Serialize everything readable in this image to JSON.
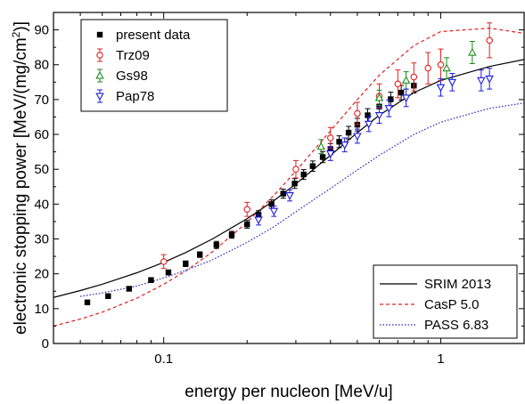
{
  "chart_data": {
    "type": "scatter",
    "xlabel": "energy per nucleon [MeV/u]",
    "ylabel": "electronic stopping power [MeV/(mg/cm²)]",
    "ylabel_parts": {
      "main": "electronic stopping power [MeV/(mg/cm",
      "sup": "2",
      "end": ")]"
    },
    "xscale": "log",
    "xlim": [
      0.04,
      2.0
    ],
    "ylim": [
      0,
      95
    ],
    "x_ticks": [
      0.1,
      1
    ],
    "x_tick_labels": [
      "0.1",
      "1"
    ],
    "y_ticks": [
      0,
      10,
      20,
      30,
      40,
      50,
      60,
      70,
      80,
      90
    ],
    "y_tick_labels": [
      "0",
      "10",
      "20",
      "30",
      "40",
      "50",
      "60",
      "70",
      "80",
      "90"
    ],
    "grid": false,
    "legend_points_placement": "top-left",
    "legend_lines_placement": "bottom-right",
    "series": [
      {
        "name": "present data",
        "kind": "points",
        "marker": "square",
        "color": "#000000",
        "points": [
          [
            0.053,
            11.8,
            0.6
          ],
          [
            0.063,
            13.6,
            0.6
          ],
          [
            0.075,
            15.7,
            0.6
          ],
          [
            0.09,
            18.2,
            0.7
          ],
          [
            0.104,
            20.4,
            0.7
          ],
          [
            0.12,
            22.9,
            0.8
          ],
          [
            0.135,
            25.5,
            0.8
          ],
          [
            0.155,
            28.3,
            1.0
          ],
          [
            0.176,
            31.2,
            1.0
          ],
          [
            0.2,
            34.2,
            1.1
          ],
          [
            0.22,
            37.0,
            1.1
          ],
          [
            0.245,
            40.0,
            1.2
          ],
          [
            0.27,
            43.0,
            1.3
          ],
          [
            0.297,
            45.9,
            1.4
          ],
          [
            0.32,
            48.5,
            1.4
          ],
          [
            0.345,
            50.9,
            1.5
          ],
          [
            0.375,
            53.5,
            1.6
          ],
          [
            0.4,
            55.8,
            1.6
          ],
          [
            0.43,
            57.9,
            1.7
          ],
          [
            0.465,
            60.5,
            1.8
          ],
          [
            0.5,
            62.8,
            1.8
          ],
          [
            0.545,
            65.5,
            1.9
          ],
          [
            0.6,
            68.0,
            2.0
          ],
          [
            0.66,
            70.1,
            2.0
          ],
          [
            0.72,
            72.0,
            2.1
          ],
          [
            0.8,
            74.0,
            2.1
          ]
        ]
      },
      {
        "name": "Trz09",
        "kind": "points",
        "marker": "circle",
        "color": "#e02020",
        "points": [
          [
            0.1,
            23.5,
            2.0
          ],
          [
            0.2,
            38.5,
            2.0
          ],
          [
            0.3,
            50.0,
            2.5
          ],
          [
            0.4,
            59.0,
            3.0
          ],
          [
            0.5,
            66.0,
            3.2
          ],
          [
            0.6,
            71.0,
            3.5
          ],
          [
            0.7,
            74.5,
            4.0
          ],
          [
            0.8,
            76.5,
            4.0
          ],
          [
            0.9,
            79.0,
            4.5
          ],
          [
            1.0,
            80.0,
            4.5
          ],
          [
            1.5,
            87.0,
            5.0
          ]
        ]
      },
      {
        "name": "Gs98",
        "kind": "points",
        "marker": "triangle-up",
        "color": "#1a8a1a",
        "points": [
          [
            0.37,
            56.5,
            2.0
          ],
          [
            0.6,
            70.5,
            2.2
          ],
          [
            0.75,
            75.5,
            2.5
          ],
          [
            1.05,
            79.0,
            3.0
          ],
          [
            1.3,
            83.5,
            3.2
          ]
        ]
      },
      {
        "name": "Pap78",
        "kind": "points",
        "marker": "triangle-down",
        "color": "#1a1adf",
        "points": [
          [
            0.22,
            35.5,
            1.5
          ],
          [
            0.25,
            38.0,
            1.5
          ],
          [
            0.285,
            42.5,
            1.6
          ],
          [
            0.4,
            54.5,
            2.0
          ],
          [
            0.45,
            57.0,
            2.0
          ],
          [
            0.5,
            59.5,
            2.0
          ],
          [
            0.55,
            63.0,
            2.2
          ],
          [
            0.6,
            65.5,
            2.3
          ],
          [
            0.65,
            67.5,
            2.4
          ],
          [
            0.75,
            70.5,
            2.5
          ],
          [
            1.0,
            73.5,
            2.5
          ],
          [
            1.1,
            75.0,
            2.5
          ],
          [
            1.4,
            75.5,
            3.0
          ],
          [
            1.5,
            76.0,
            3.0
          ]
        ]
      },
      {
        "name": "SRIM 2013",
        "kind": "line",
        "dash": "solid",
        "color": "#000000",
        "x": [
          0.04,
          0.05,
          0.06,
          0.08,
          0.1,
          0.12,
          0.15,
          0.2,
          0.25,
          0.3,
          0.4,
          0.5,
          0.6,
          0.8,
          1.0,
          1.5,
          2.0
        ],
        "y": [
          13.2,
          15.2,
          17.0,
          20.3,
          23.3,
          26.1,
          30.0,
          35.8,
          41.0,
          45.8,
          54.0,
          60.5,
          65.5,
          72.0,
          75.5,
          79.5,
          81.5
        ]
      },
      {
        "name": "CasP 5.0",
        "kind": "line",
        "dash": "dashed",
        "color": "#e02020",
        "x": [
          0.04,
          0.05,
          0.06,
          0.08,
          0.1,
          0.12,
          0.15,
          0.2,
          0.25,
          0.3,
          0.4,
          0.5,
          0.6,
          0.8,
          1.0,
          1.5,
          2.0
        ],
        "y": [
          5.0,
          7.0,
          9.0,
          13.0,
          17.0,
          20.8,
          26.3,
          34.8,
          42.5,
          49.5,
          61.0,
          70.0,
          77.0,
          85.5,
          89.5,
          90.5,
          89.0
        ]
      },
      {
        "name": "PASS 6.83",
        "kind": "line",
        "dash": "dotted",
        "color": "#2020c0",
        "x": [
          0.05,
          0.06,
          0.08,
          0.1,
          0.12,
          0.15,
          0.2,
          0.25,
          0.3,
          0.4,
          0.5,
          0.6,
          0.8,
          1.0,
          1.5,
          2.0
        ],
        "y": [
          13.5,
          14.5,
          16.5,
          18.8,
          21.0,
          24.0,
          29.0,
          33.5,
          37.8,
          44.5,
          49.8,
          54.0,
          60.0,
          63.5,
          67.5,
          69.0
        ]
      }
    ]
  }
}
